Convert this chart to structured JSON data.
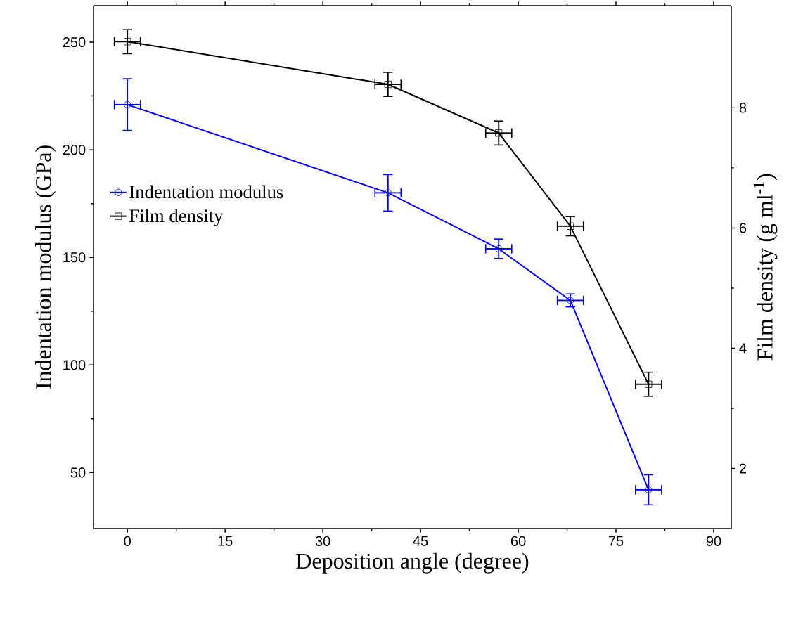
{
  "chart_data": {
    "type": "line",
    "xlabel": "Deposition angle (degree)",
    "ylabel": "Indentation modulus (GPa)",
    "y2label": "Film density (g ml$^{-1}$)",
    "x": [
      0,
      40,
      57,
      68,
      80
    ],
    "series": [
      {
        "name": "Indentation modulus",
        "color": "#0000ff",
        "marker": "circle",
        "values": [
          221,
          180,
          154,
          130,
          42
        ],
        "errors": [
          12,
          8.5,
          4.5,
          3,
          7
        ],
        "xerrors": [
          2,
          2,
          2,
          2,
          2
        ]
      },
      {
        "name": "Film density",
        "color": "#000000",
        "marker": "square",
        "axis": "y2",
        "values": [
          9.1,
          8.39,
          7.58,
          6.03,
          3.4
        ],
        "errors": [
          0.2,
          0.2,
          0.2,
          0.16,
          0.2
        ],
        "xerrors": [
          2,
          2,
          2,
          2,
          2
        ]
      }
    ],
    "xlim": [
      -5.2,
      92.7
    ],
    "xticks": [
      0,
      15,
      30,
      45,
      60,
      75,
      90
    ],
    "ylim": [
      24,
      267
    ],
    "yticks": [
      50,
      100,
      150,
      200,
      250
    ],
    "y2lim": [
      1,
      9.7
    ],
    "y2ticks": [
      2,
      4,
      6,
      8
    ],
    "legend": "left",
    "grid": false,
    "line_style": "solid"
  }
}
